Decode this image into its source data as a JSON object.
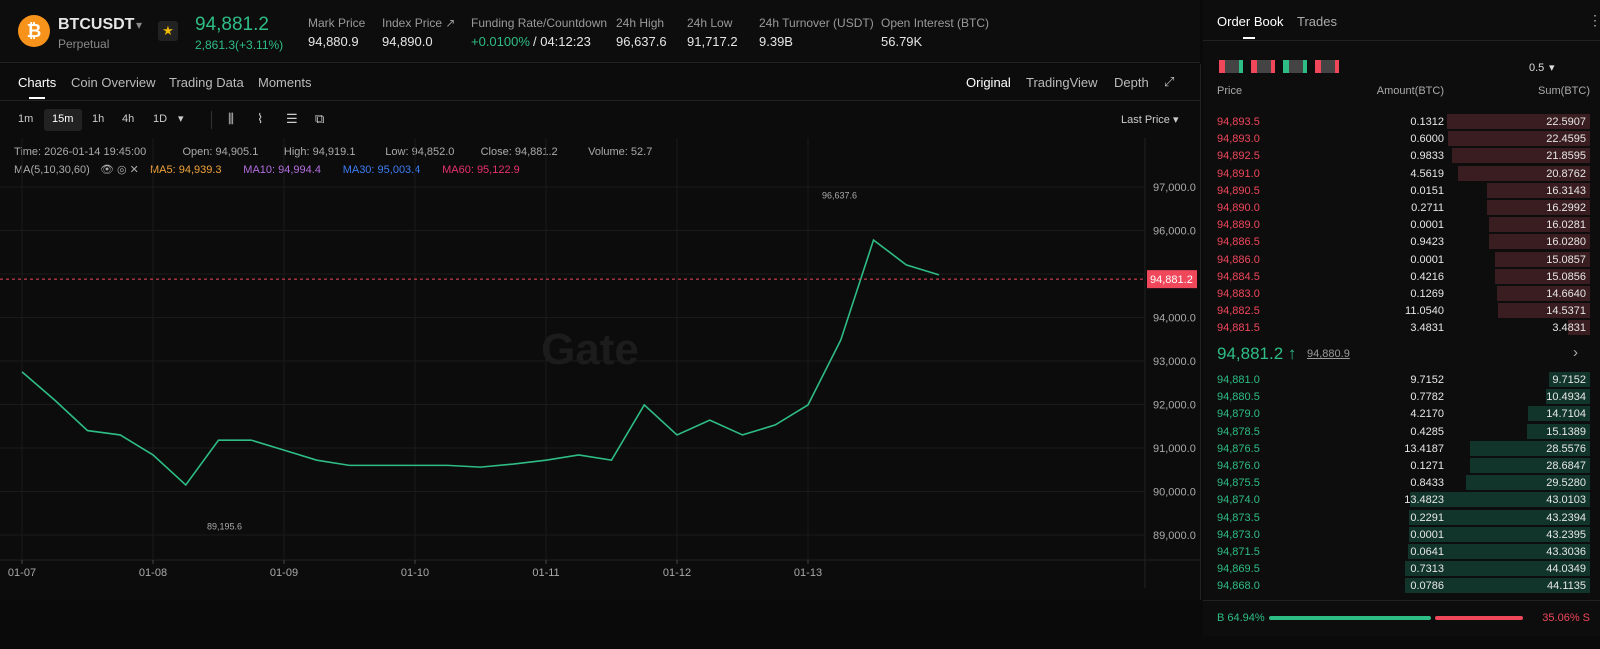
{
  "header": {
    "symbol": "BTCUSDT",
    "subtitle": "Perpetual",
    "price": "94,881.2",
    "change": "2,861.3(+3.11%)",
    "stats": [
      {
        "label": "Mark Price",
        "value": "94,880.9"
      },
      {
        "label": "Index Price ↗",
        "value": "94,890.0"
      },
      {
        "label": "Funding Rate/Countdown",
        "value": "+0.0100%",
        "extra": "/ 04:12:23"
      },
      {
        "label": "24h High",
        "value": "96,637.6"
      },
      {
        "label": "24h Low",
        "value": "91,717.2"
      },
      {
        "label": "24h Turnover (USDT)",
        "value": "9.39B"
      },
      {
        "label": "Open Interest (BTC)",
        "value": "56.79K"
      }
    ]
  },
  "tabs": [
    "Charts",
    "Coin Overview",
    "Trading Data",
    "Moments"
  ],
  "views": [
    "Original",
    "TradingView",
    "Depth"
  ],
  "intervals": [
    "1m",
    "15m",
    "1h",
    "4h",
    "1D"
  ],
  "price_type": "Last Price",
  "info": [
    "Time: 2026-01-14 19:45:00",
    "Open: 94,905.1",
    "High: 94,919.1",
    "Low: 94,852.0",
    "Close: 94,881.2",
    "Volume: 52.7"
  ],
  "ma_title": "MA(5,10,30,60)",
  "ma": [
    {
      "text": "MA5: 94,939.3",
      "color": "#f0a23a"
    },
    {
      "text": "MA10: 94,994.4",
      "color": "#b46ee0"
    },
    {
      "text": "MA30: 95,003.4",
      "color": "#3d7cf2"
    },
    {
      "text": "MA60: 95,122.9",
      "color": "#e8316d"
    }
  ],
  "watermark": "Gate",
  "chart_data": {
    "type": "line",
    "categories": [
      "01-07",
      null,
      null,
      null,
      "01-08",
      null,
      null,
      null,
      "01-09",
      null,
      null,
      null,
      "01-10",
      null,
      null,
      null,
      "01-11",
      null,
      null,
      null,
      "01-12",
      null,
      null,
      null,
      "01-13",
      null,
      null,
      null,
      null
    ],
    "series": [
      {
        "name": "BTCUSDT",
        "color": "#2ebd85",
        "values": [
          92750,
          92100,
          91400,
          91300,
          90840,
          90150,
          91180,
          91180,
          90950,
          90720,
          90600,
          90600,
          90600,
          90600,
          90560,
          90630,
          90720,
          90840,
          90720,
          91990,
          91300,
          91640,
          91300,
          91530,
          91990,
          93480,
          95780,
          95210,
          94980
        ]
      }
    ],
    "ylim": [
      88425,
      98126
    ],
    "yticks": [
      {
        "value": 89000,
        "label": "89,000.0"
      },
      {
        "value": 90000,
        "label": "90,000.0"
      },
      {
        "value": 91000,
        "label": "91,000.0"
      },
      {
        "value": 92000,
        "label": "92,000.0"
      },
      {
        "value": 93000,
        "label": "93,000.0"
      },
      {
        "value": 94000,
        "label": "94,000.0"
      },
      {
        "value": 95000,
        "label": "95,000.0"
      },
      {
        "value": 96000,
        "label": "96,000.0"
      },
      {
        "value": 97000,
        "label": "97,000.0"
      }
    ],
    "grid": true,
    "last_price": {
      "value": 94881.2,
      "label": "94,881.2"
    },
    "annotations": [
      {
        "value": 96637.6,
        "label": "96,637.6"
      },
      {
        "value": 89195.6,
        "label": "89,195.6"
      }
    ]
  },
  "order_book": {
    "tabs": [
      "Order Book",
      "Trades"
    ],
    "step": "0.5",
    "headers": [
      "Price",
      "Amount(BTC)",
      "Sum(BTC)"
    ],
    "asks": [
      [
        "94,893.5",
        "0.1312",
        "22.5907"
      ],
      [
        "94,893.0",
        "0.6000",
        "22.4595"
      ],
      [
        "94,892.5",
        "0.9833",
        "21.8595"
      ],
      [
        "94,891.0",
        "4.5619",
        "20.8762"
      ],
      [
        "94,890.5",
        "0.0151",
        "16.3143"
      ],
      [
        "94,890.0",
        "0.2711",
        "16.2992"
      ],
      [
        "94,889.0",
        "0.0001",
        "16.0281"
      ],
      [
        "94,886.5",
        "0.9423",
        "16.0280"
      ],
      [
        "94,886.0",
        "0.0001",
        "15.0857"
      ],
      [
        "94,884.5",
        "0.4216",
        "15.0856"
      ],
      [
        "94,883.0",
        "0.1269",
        "14.6640"
      ],
      [
        "94,882.5",
        "11.0540",
        "14.5371"
      ],
      [
        "94,881.5",
        "3.4831",
        "3.4831"
      ]
    ],
    "mid_price": "94,881.2 ↑",
    "mark": "94,880.9",
    "bids": [
      [
        "94,881.0",
        "9.7152",
        "9.7152"
      ],
      [
        "94,880.5",
        "0.7782",
        "10.4934"
      ],
      [
        "94,879.0",
        "4.2170",
        "14.7104"
      ],
      [
        "94,878.5",
        "0.4285",
        "15.1389"
      ],
      [
        "94,876.5",
        "13.4187",
        "28.5576"
      ],
      [
        "94,876.0",
        "0.1271",
        "28.6847"
      ],
      [
        "94,875.5",
        "0.8433",
        "29.5280"
      ],
      [
        "94,874.0",
        "13.4823",
        "43.0103"
      ],
      [
        "94,873.5",
        "0.2291",
        "43.2394"
      ],
      [
        "94,873.0",
        "0.0001",
        "43.2395"
      ],
      [
        "94,871.5",
        "0.0641",
        "43.3036"
      ],
      [
        "94,869.5",
        "0.7313",
        "44.0349"
      ],
      [
        "94,868.0",
        "0.0786",
        "44.1135"
      ]
    ],
    "buy": "B 64.94%",
    "sell": "35.06% S"
  }
}
